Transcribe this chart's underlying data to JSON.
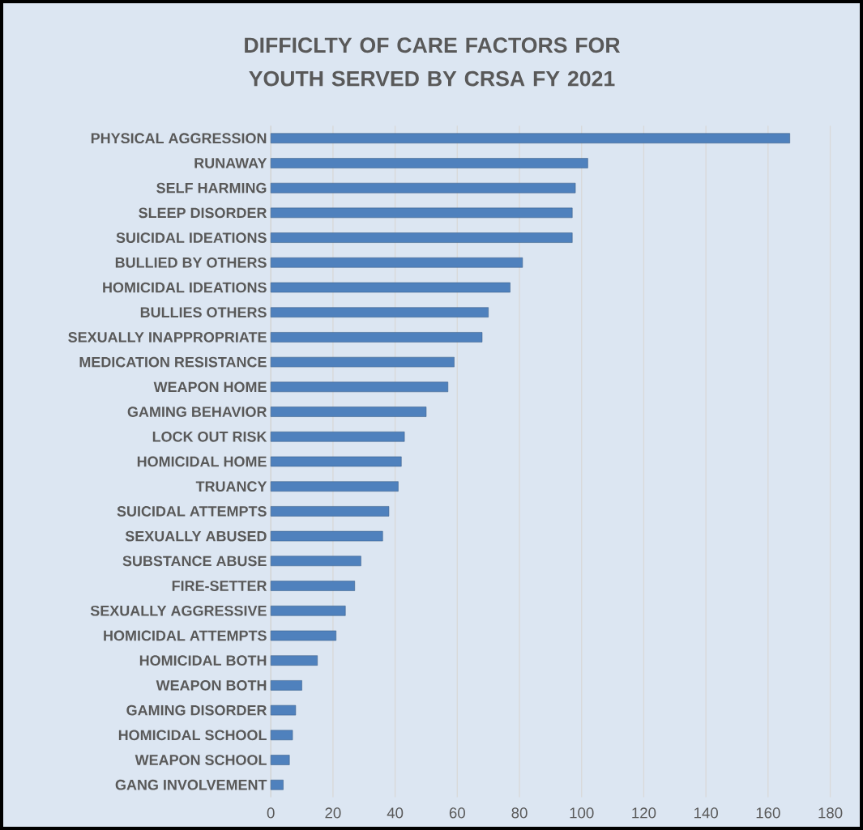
{
  "chart_data": {
    "type": "bar",
    "orientation": "horizontal",
    "title": "DIFFICLTY OF CARE FACTORS FOR YOUTH SERVED BY CRSA FY 2021",
    "categories": [
      "PHYSICAL AGGRESSION",
      "RUNAWAY",
      "SELF HARMING",
      "SLEEP DISORDER",
      "SUICIDAL IDEATIONS",
      "BULLIED BY OTHERS",
      "HOMICIDAL IDEATIONS",
      "BULLIES OTHERS",
      "SEXUALLY INAPPROPRIATE",
      "MEDICATION RESISTANCE",
      "WEAPON HOME",
      "GAMING BEHAVIOR",
      "LOCK OUT RISK",
      "HOMICIDAL HOME",
      "TRUANCY",
      "SUICIDAL ATTEMPTS",
      "SEXUALLY ABUSED",
      "SUBSTANCE ABUSE",
      "FIRE-SETTER",
      "SEXUALLY AGGRESSIVE",
      "HOMICIDAL ATTEMPTS",
      "HOMICIDAL BOTH",
      "WEAPON BOTH",
      "GAMING DISORDER",
      "HOMICIDAL SCHOOL",
      "WEAPON SCHOOL",
      "GANG INVOLVEMENT"
    ],
    "values": [
      167,
      102,
      98,
      97,
      97,
      81,
      77,
      70,
      68,
      59,
      57,
      50,
      43,
      42,
      41,
      38,
      36,
      29,
      27,
      24,
      21,
      15,
      10,
      8,
      7,
      6,
      4
    ],
    "color": "#4f81bd",
    "xlim": [
      0,
      180
    ],
    "xticks": [
      0,
      20,
      40,
      60,
      80,
      100,
      120,
      140,
      160,
      180
    ],
    "grid": "x"
  }
}
